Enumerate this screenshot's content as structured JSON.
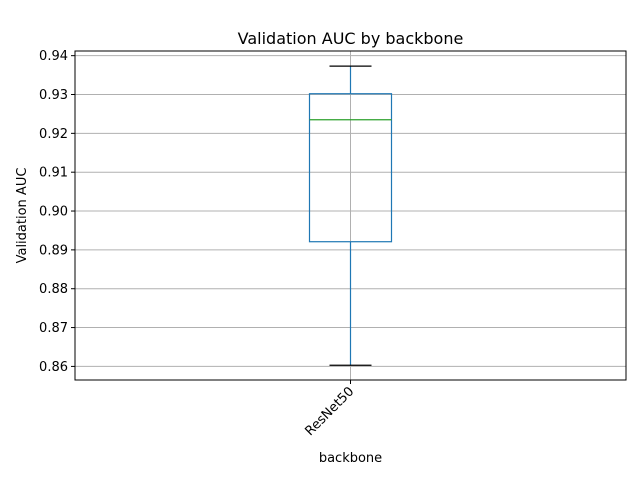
{
  "chart_data": {
    "type": "box",
    "title": "Validation AUC by backbone",
    "xlabel": "backbone",
    "ylabel": "Validation AUC",
    "ylim": [
      0.8565,
      0.9412
    ],
    "yticks": [
      "0.86",
      "0.87",
      "0.88",
      "0.89",
      "0.90",
      "0.91",
      "0.92",
      "0.93",
      "0.94"
    ],
    "grid": true,
    "categories": [
      "ResNet50"
    ],
    "boxes": [
      {
        "category": "ResNet50",
        "whisker_low": 0.8603,
        "q1": 0.8921,
        "median": 0.9235,
        "q3": 0.9302,
        "whisker_high": 0.9373
      }
    ],
    "colors": {
      "box": "#1f77b4",
      "median": "#2ca02c",
      "whisker": "#1f77b4",
      "cap": "#000000",
      "grid": "#b0b0b0"
    }
  }
}
